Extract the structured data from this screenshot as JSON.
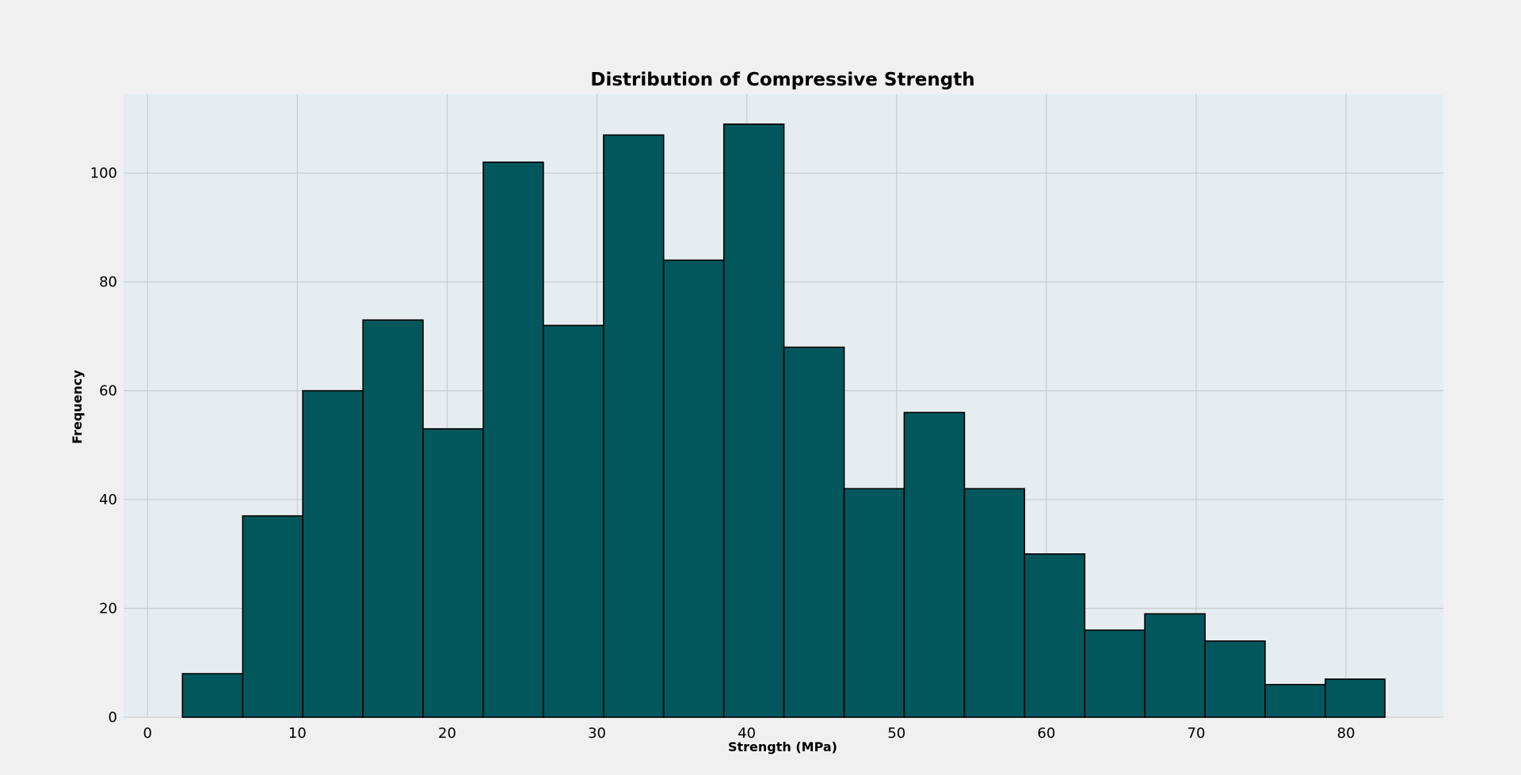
{
  "chart_data": {
    "type": "bar",
    "subtype": "histogram",
    "title": "Distribution of Compressive Strength",
    "xlabel": "Strength (MPa)",
    "ylabel": "Frequency",
    "xlim": [
      -1.6,
      86.5
    ],
    "ylim": [
      0,
      114.5
    ],
    "x_ticks": [
      0,
      10,
      20,
      30,
      40,
      50,
      60,
      70,
      80
    ],
    "y_ticks": [
      0,
      20,
      40,
      60,
      80,
      100
    ],
    "grid": true,
    "legend": "none",
    "bin_edges": [
      2.33,
      6.35,
      10.36,
      14.38,
      18.39,
      22.41,
      26.42,
      30.44,
      34.45,
      38.47,
      42.48,
      46.5,
      50.51,
      54.53,
      58.54,
      62.56,
      66.57,
      70.59,
      74.6,
      78.62,
      82.6
    ],
    "values": [
      8,
      37,
      60,
      73,
      53,
      102,
      72,
      107,
      84,
      109,
      68,
      42,
      56,
      42,
      30,
      16,
      19,
      14,
      6,
      7
    ],
    "colors": {
      "bar_fill": "#02575c",
      "bar_edge": "#000000",
      "plot_background": "#e6edf0",
      "figure_background": "#f0f0f0",
      "grid": "#c8cdd1"
    }
  }
}
